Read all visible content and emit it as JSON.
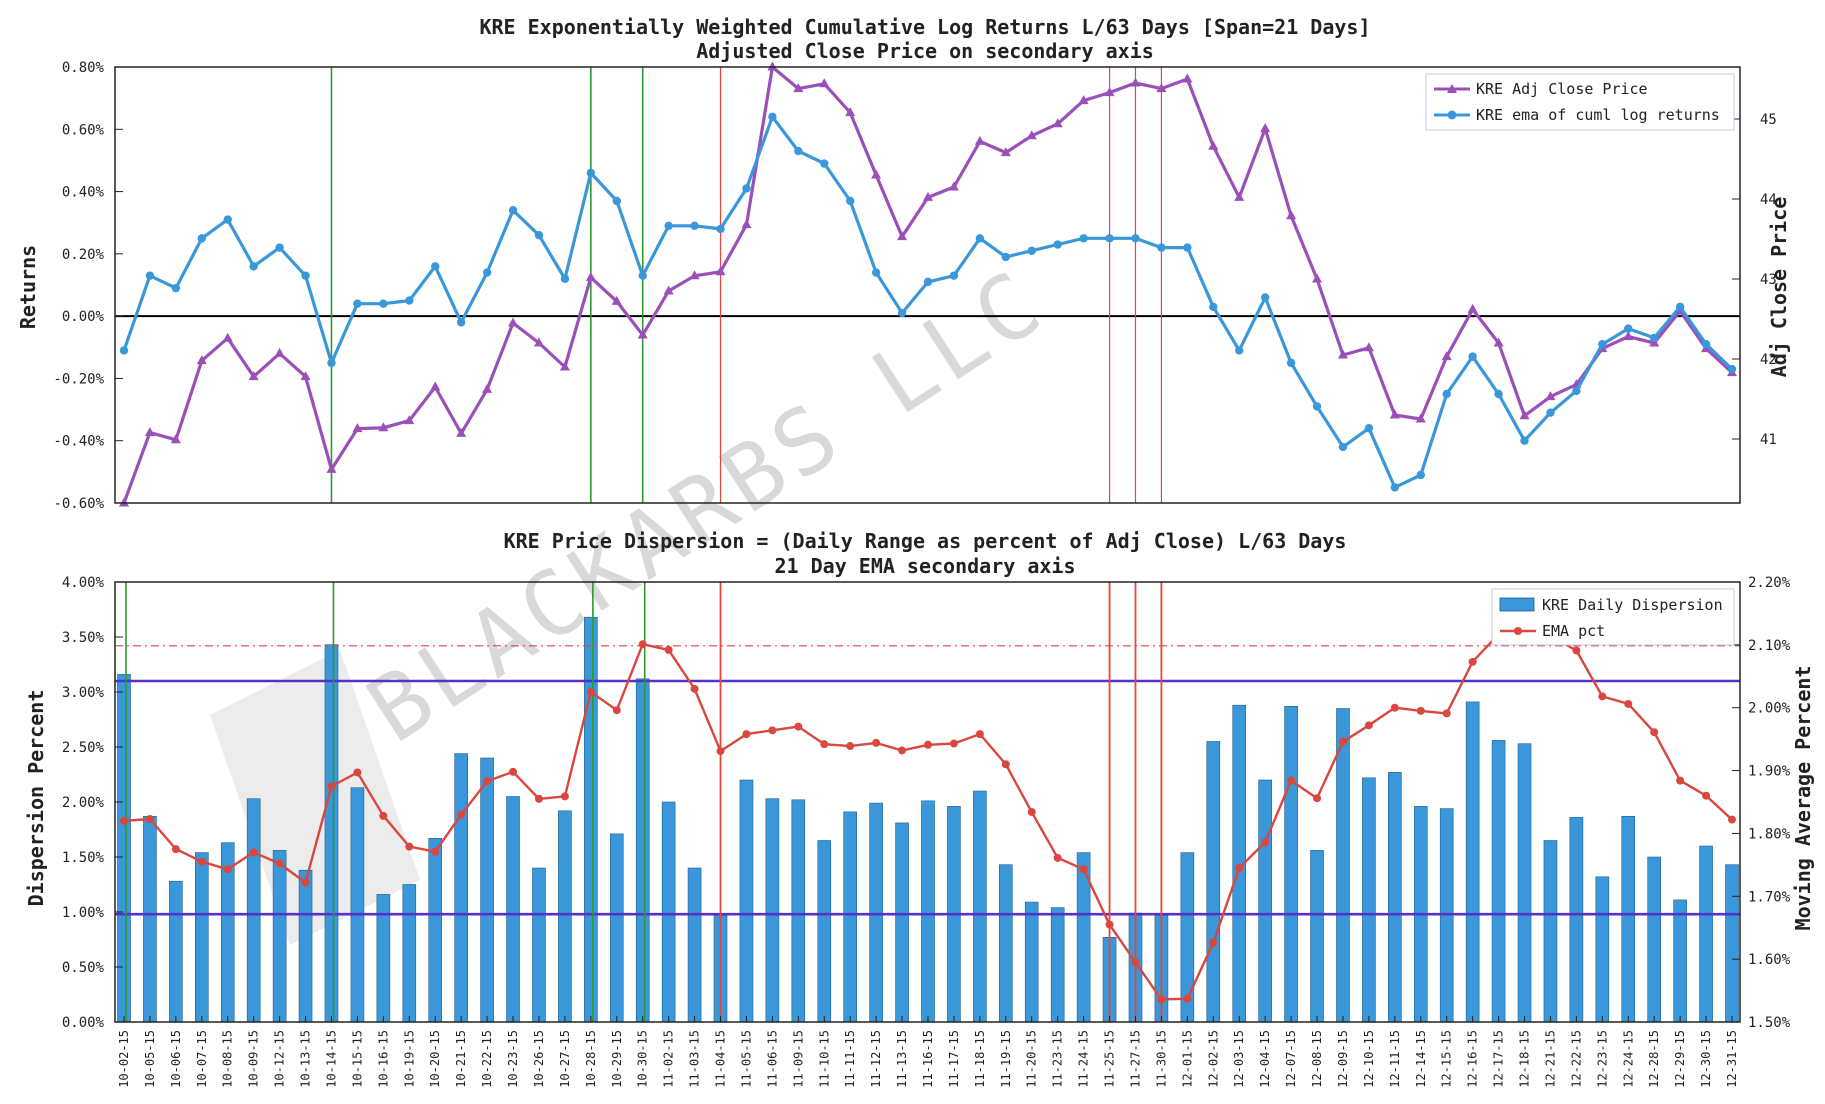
{
  "watermark": "BLACKARBS LLC",
  "dates": [
    "10-02-15",
    "10-05-15",
    "10-06-15",
    "10-07-15",
    "10-08-15",
    "10-09-15",
    "10-12-15",
    "10-13-15",
    "10-14-15",
    "10-15-15",
    "10-16-15",
    "10-19-15",
    "10-20-15",
    "10-21-15",
    "10-22-15",
    "10-23-15",
    "10-26-15",
    "10-27-15",
    "10-28-15",
    "10-29-15",
    "10-30-15",
    "11-02-15",
    "11-03-15",
    "11-04-15",
    "11-05-15",
    "11-06-15",
    "11-09-15",
    "11-10-15",
    "11-11-15",
    "11-12-15",
    "11-13-15",
    "11-16-15",
    "11-17-15",
    "11-18-15",
    "11-19-15",
    "11-20-15",
    "11-23-15",
    "11-24-15",
    "11-25-15",
    "11-27-15",
    "11-30-15",
    "12-01-15",
    "12-02-15",
    "12-03-15",
    "12-04-15",
    "12-07-15",
    "12-08-15",
    "12-09-15",
    "12-10-15",
    "12-11-15",
    "12-14-15",
    "12-15-15",
    "12-16-15",
    "12-17-15",
    "12-18-15",
    "12-21-15",
    "12-22-15",
    "12-23-15",
    "12-24-15",
    "12-28-15",
    "12-29-15",
    "12-30-15",
    "12-31-15"
  ],
  "chart_data": [
    {
      "type": "line",
      "title": "KRE Exponentially Weighted Cumulative Log Returns L/63 Days [Span=21 Days]",
      "subtitle": "Adjusted Close Price on secondary axis",
      "ylabel": "Returns",
      "y2label": "Adj Close Price",
      "ylim": [
        -0.6,
        0.8
      ],
      "y2lim": [
        40.2,
        45.65
      ],
      "yticks": [
        "-0.60%",
        "-0.40%",
        "-0.20%",
        "0.00%",
        "0.20%",
        "0.40%",
        "0.60%",
        "0.80%"
      ],
      "y2ticks": [
        "41",
        "42",
        "43",
        "44",
        "45"
      ],
      "x": [
        "10-02-15",
        "10-05-15",
        "10-06-15",
        "10-07-15",
        "10-08-15",
        "10-09-15",
        "10-12-15",
        "10-13-15",
        "10-14-15",
        "10-15-15",
        "10-16-15",
        "10-19-15",
        "10-20-15",
        "10-21-15",
        "10-22-15",
        "10-23-15",
        "10-26-15",
        "10-27-15",
        "10-28-15",
        "10-29-15",
        "10-30-15",
        "11-02-15",
        "11-03-15",
        "11-04-15",
        "11-05-15",
        "11-06-15",
        "11-09-15",
        "11-10-15",
        "11-11-15",
        "11-12-15",
        "11-13-15",
        "11-16-15",
        "11-17-15",
        "11-18-15",
        "11-19-15",
        "11-20-15",
        "11-23-15",
        "11-24-15",
        "11-25-15",
        "11-27-15",
        "11-30-15",
        "12-01-15",
        "12-02-15",
        "12-03-15",
        "12-04-15",
        "12-07-15",
        "12-08-15",
        "12-09-15",
        "12-10-15",
        "12-11-15",
        "12-14-15",
        "12-15-15",
        "12-16-15",
        "12-17-15",
        "12-18-15",
        "12-21-15",
        "12-22-15",
        "12-23-15",
        "12-24-15",
        "12-28-15",
        "12-29-15",
        "12-30-15",
        "12-31-15"
      ],
      "series": [
        {
          "name": "KRE Adj Close Price",
          "axis": "right",
          "color": "#9b4fb8",
          "marker": "triangle",
          "values": [
            40.2,
            41.08,
            40.99,
            41.98,
            42.26,
            41.78,
            42.07,
            41.78,
            40.62,
            41.13,
            41.14,
            41.23,
            41.65,
            41.07,
            41.62,
            42.45,
            42.2,
            41.9,
            43.02,
            42.72,
            42.3,
            42.85,
            43.04,
            43.09,
            43.68,
            45.65,
            45.38,
            45.44,
            45.08,
            44.3,
            43.53,
            44.02,
            44.15,
            44.72,
            44.58,
            44.79,
            44.94,
            45.23,
            45.33,
            45.45,
            45.38,
            45.5,
            44.66,
            44.02,
            44.88,
            43.79,
            43.0,
            42.05,
            42.14,
            41.3,
            41.25,
            42.03,
            42.62,
            42.2,
            41.29,
            41.53,
            41.68,
            42.13,
            42.28,
            42.2,
            42.6,
            42.13,
            41.83
          ]
        },
        {
          "name": "KRE ema of cuml log returns",
          "axis": "left",
          "color": "#3a97d9",
          "marker": "circle",
          "values": [
            -0.11,
            0.13,
            0.09,
            0.25,
            0.31,
            0.16,
            0.22,
            0.13,
            -0.15,
            0.04,
            0.04,
            0.05,
            0.16,
            -0.02,
            0.14,
            0.34,
            0.26,
            0.12,
            0.46,
            0.37,
            0.13,
            0.29,
            0.29,
            0.28,
            0.41,
            0.64,
            0.53,
            0.49,
            0.37,
            0.14,
            0.01,
            0.11,
            0.13,
            0.25,
            0.19,
            0.21,
            0.23,
            0.25,
            0.25,
            0.25,
            0.22,
            0.22,
            0.03,
            -0.11,
            0.06,
            -0.15,
            -0.29,
            -0.42,
            -0.36,
            -0.55,
            -0.51,
            -0.25,
            -0.13,
            -0.25,
            -0.4,
            -0.31,
            -0.24,
            -0.09,
            -0.04,
            -0.07,
            0.03,
            -0.09,
            -0.17
          ]
        }
      ],
      "x_positions_note": "secondary-axis series plotted on same date axis",
      "vlines_green": [
        "10-14-15",
        "10-28-15",
        "10-30-15"
      ],
      "vlines_red": [
        "11-04-15",
        "11-25-15",
        "11-27-15",
        "11-30-15"
      ],
      "hline": 0.0,
      "legend": "top-right"
    },
    {
      "type": "bar",
      "title": "KRE Price Dispersion = (Daily Range as percent of Adj Close) L/63 Days",
      "subtitle": "21 Day EMA secondary axis",
      "ylabel": "Dispersion Percent",
      "y2label": "Moving Average Percent",
      "ylim": [
        0,
        4.0
      ],
      "y2lim": [
        1.5,
        2.2
      ],
      "yticks": [
        "0.00%",
        "0.50%",
        "1.00%",
        "1.50%",
        "2.00%",
        "2.50%",
        "3.00%",
        "3.50%",
        "4.00%"
      ],
      "y2ticks": [
        "1.50%",
        "1.60%",
        "1.70%",
        "1.80%",
        "1.90%",
        "2.00%",
        "2.10%",
        "2.20%"
      ],
      "categories": [
        "10-02-15",
        "10-05-15",
        "10-06-15",
        "10-07-15",
        "10-08-15",
        "10-09-15",
        "10-12-15",
        "10-13-15",
        "10-14-15",
        "10-15-15",
        "10-16-15",
        "10-19-15",
        "10-20-15",
        "10-21-15",
        "10-22-15",
        "10-23-15",
        "10-26-15",
        "10-27-15",
        "10-28-15",
        "10-29-15",
        "10-30-15",
        "11-02-15",
        "11-03-15",
        "11-04-15",
        "11-05-15",
        "11-06-15",
        "11-09-15",
        "11-10-15",
        "11-11-15",
        "11-12-15",
        "11-13-15",
        "11-16-15",
        "11-17-15",
        "11-18-15",
        "11-19-15",
        "11-20-15",
        "11-23-15",
        "11-24-15",
        "11-25-15",
        "11-27-15",
        "11-30-15",
        "12-01-15",
        "12-02-15",
        "12-03-15",
        "12-04-15",
        "12-07-15",
        "12-08-15",
        "12-09-15",
        "12-10-15",
        "12-11-15",
        "12-14-15",
        "12-15-15",
        "12-16-15",
        "12-17-15",
        "12-18-15",
        "12-21-15",
        "12-22-15",
        "12-23-15",
        "12-24-15",
        "12-28-15",
        "12-29-15",
        "12-30-15",
        "12-31-15"
      ],
      "series": [
        {
          "name": "KRE Daily Dispersion",
          "axis": "left",
          "color": "#3a97d9",
          "values": [
            3.16,
            1.87,
            1.28,
            1.54,
            1.63,
            2.03,
            1.56,
            1.38,
            3.43,
            2.13,
            1.16,
            1.25,
            1.67,
            2.44,
            2.4,
            2.05,
            1.4,
            1.92,
            3.68,
            1.71,
            3.12,
            2.0,
            1.4,
            0.97,
            2.2,
            2.03,
            2.02,
            1.65,
            1.91,
            1.99,
            1.81,
            2.01,
            1.96,
            2.1,
            1.43,
            1.09,
            1.04,
            1.54,
            0.77,
            0.99,
            0.97,
            1.54,
            2.55,
            2.88,
            2.2,
            2.87,
            1.56,
            2.85,
            2.22,
            2.27,
            1.96,
            1.94,
            2.91,
            2.56,
            2.53,
            1.65,
            1.86,
            1.32,
            1.87,
            1.5,
            1.11,
            1.6,
            1.43
          ]
        },
        {
          "name": "EMA pct",
          "axis": "right",
          "color": "#d9473f",
          "values": [
            1.82,
            1.823,
            1.775,
            1.755,
            1.743,
            1.77,
            1.752,
            1.722,
            1.875,
            1.897,
            1.828,
            1.779,
            1.771,
            1.83,
            1.883,
            1.898,
            1.855,
            1.859,
            2.025,
            1.996,
            2.101,
            2.092,
            2.03,
            1.931,
            1.958,
            1.964,
            1.97,
            1.942,
            1.939,
            1.944,
            1.932,
            1.941,
            1.943,
            1.958,
            1.91,
            1.834,
            1.761,
            1.743,
            1.655,
            1.595,
            1.536,
            1.537,
            1.626,
            1.745,
            1.786,
            1.884,
            1.856,
            1.946,
            1.972,
            2.0,
            1.995,
            1.991,
            2.073,
            2.117,
            2.155,
            2.114,
            2.091,
            2.018,
            2.006,
            1.961,
            1.884,
            1.86,
            1.822
          ]
        }
      ],
      "hlines": [
        {
          "axis": "left",
          "value": 3.1,
          "color": "#5530c9",
          "style": "solid"
        },
        {
          "axis": "left",
          "value": 0.98,
          "color": "#5530c9",
          "style": "solid"
        },
        {
          "axis": "left",
          "value": 3.42,
          "color": "#d9473f",
          "style": "dashdot"
        }
      ],
      "vlines_green": [
        "10-02-15",
        "10-14-15",
        "10-28-15",
        "10-30-15"
      ],
      "vlines_red": [
        "11-04-15",
        "11-25-15",
        "11-27-15",
        "11-30-15"
      ],
      "legend": "top-right"
    }
  ]
}
